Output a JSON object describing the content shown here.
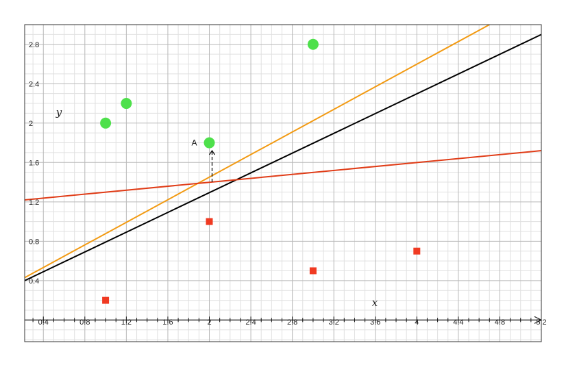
{
  "chart_data": {
    "type": "scatter",
    "title": "",
    "xlabel": "x",
    "ylabel": "y",
    "xlim": [
      0.22,
      5.2
    ],
    "ylim": [
      -0.22,
      3.0
    ],
    "grid": true,
    "legend": "none",
    "x_ticks": [
      "0.4",
      "0.8",
      "1.2",
      "1.6",
      "2",
      "2.4",
      "2.8",
      "3.2",
      "3.6",
      "4",
      "4.4",
      "4.8",
      "5.2"
    ],
    "y_ticks": [
      "0.4",
      "0.8",
      "1.2",
      "1.6",
      "2",
      "2.4",
      "2.8"
    ],
    "series": [
      {
        "marker": "circle",
        "color": "#4ee04b",
        "points": [
          {
            "x": 1.0,
            "y": 2.0
          },
          {
            "x": 1.2,
            "y": 2.2
          },
          {
            "x": 2.0,
            "y": 1.8
          },
          {
            "x": 3.0,
            "y": 2.8
          }
        ]
      },
      {
        "marker": "square",
        "color": "#f03a22",
        "points": [
          {
            "x": 1.0,
            "y": 0.2
          },
          {
            "x": 2.0,
            "y": 1.0
          },
          {
            "x": 3.0,
            "y": 0.5
          },
          {
            "x": 4.0,
            "y": 0.7
          }
        ]
      }
    ],
    "lines": [
      {
        "color": "#f29a12",
        "x1": 0.22,
        "y1": 0.43,
        "x2": 4.7,
        "y2": 3.0
      },
      {
        "color": "#000000",
        "x1": 0.22,
        "y1": 0.4,
        "x2": 5.2,
        "y2": 2.9
      },
      {
        "color": "#e03c17",
        "x1": 0.22,
        "y1": 1.22,
        "x2": 5.2,
        "y2": 1.72
      }
    ],
    "annotations": [
      {
        "text": "A",
        "x": 2.0,
        "y": 1.8,
        "arrow_from_y": 1.4,
        "arrow_to_y": 1.79
      }
    ]
  }
}
